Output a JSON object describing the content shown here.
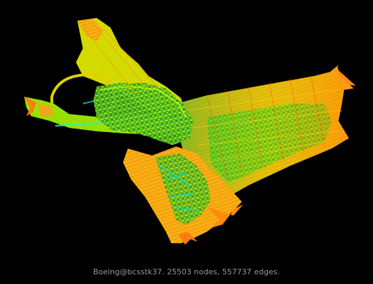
{
  "caption": "Boeing@bcsstk37. 25503 nodes, 557737 edges.",
  "colors": {
    "background": "#000000",
    "caption_text": "#9a9a9a",
    "edge_near": "#ff8a1c",
    "edge_mid": "#d7e800",
    "edge_far": "#2fe35a"
  }
}
